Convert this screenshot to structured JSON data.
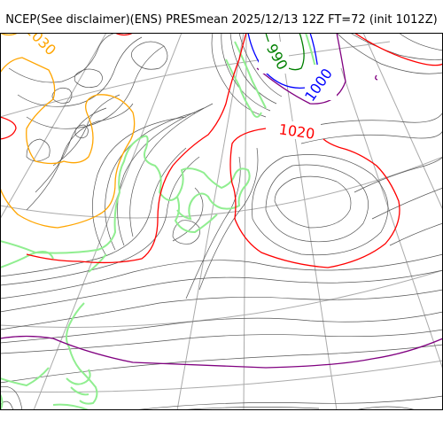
{
  "title": "NCEP(See disclaimer)(ENS) PRESmean 2025/12/13 12Z FT=72 (init 1012Z)",
  "map": {
    "contour_labels": [
      {
        "text": "1030",
        "color": "#ffa500"
      },
      {
        "text": "990",
        "color": "#008000"
      },
      {
        "text": "1000",
        "color": "#0000ff"
      },
      {
        "text": "1020",
        "color": "#ff0000"
      }
    ],
    "colors": {
      "isobar_thin": "#555555",
      "graticule": "#aaaaaa",
      "coastline": "#90ee90",
      "isobar_1020": "#ff0000",
      "isobar_1030": "#ffa500",
      "isobar_1010": "#800080",
      "isobar_1000": "#0000ff",
      "isobar_990": "#008000"
    }
  }
}
